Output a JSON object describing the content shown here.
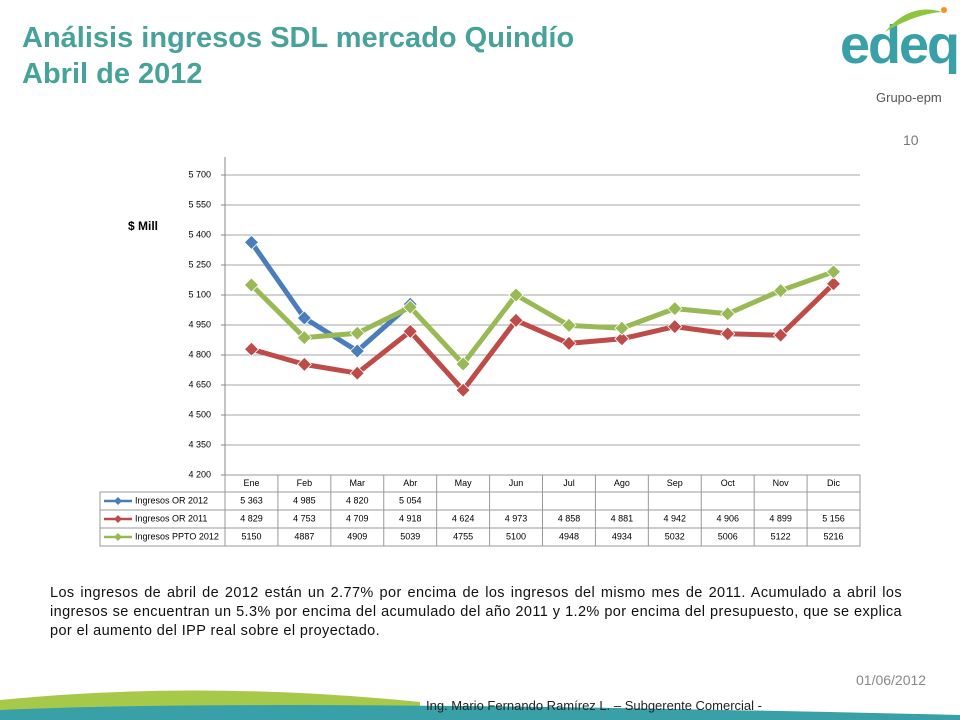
{
  "title": "Análisis ingresos SDL mercado Quindío",
  "subtitle": "Abril de 2012",
  "logo": {
    "brand": "edeq",
    "group": "Grupo-epm"
  },
  "page_number": "10",
  "paragraph": "Los ingresos de abril de 2012 están un 2.77% por encima de los ingresos del mismo mes de 2011. Acumulado a abril los ingresos se encuentran un 5.3% por encima del acumulado del año 2011 y 1.2% por encima del presupuesto, que se explica por el aumento del IPP real sobre el proyectado.",
  "date": "01/06/2012",
  "footer": "Ing. Mario Fernando Ramírez L. – Subgerente Comercial -",
  "chart_data": {
    "type": "line",
    "y_label": "$ Mill",
    "categories": [
      "Ene",
      "Feb",
      "Mar",
      "Abr",
      "May",
      "Jun",
      "Jul",
      "Ago",
      "Sep",
      "Oct",
      "Nov",
      "Dic"
    ],
    "ylim": [
      4200,
      5700
    ],
    "yticks": [
      {
        "value": 4200,
        "label": "4 200"
      },
      {
        "value": 4350,
        "label": "4 350"
      },
      {
        "value": 4500,
        "label": "4 500"
      },
      {
        "value": 4650,
        "label": "4 650"
      },
      {
        "value": 4800,
        "label": "4 800"
      },
      {
        "value": 4950,
        "label": "4 950"
      },
      {
        "value": 5100,
        "label": "5 100"
      },
      {
        "value": 5250,
        "label": "5 250"
      },
      {
        "value": 5400,
        "label": "5 400"
      },
      {
        "value": 5550,
        "label": "5 550"
      },
      {
        "value": 5700,
        "label": "5 700"
      }
    ],
    "grid": true,
    "series": [
      {
        "name": "Ingresos OR 2012",
        "color": "#4a7ebb",
        "values": [
          5363,
          4985,
          4820,
          5054,
          null,
          null,
          null,
          null,
          null,
          null,
          null,
          null
        ],
        "value_labels": [
          "5 363",
          "4 985",
          "4 820",
          "5 054",
          null,
          null,
          null,
          null,
          null,
          null,
          null,
          null
        ]
      },
      {
        "name": "Ingresos OR 2011",
        "color": "#be4b48",
        "values": [
          4829,
          4753,
          4709,
          4918,
          4624,
          4973,
          4858,
          4881,
          4942,
          4906,
          4899,
          5156
        ],
        "value_labels": [
          "4 829",
          "4 753",
          "4 709",
          "4 918",
          "4 624",
          "4 973",
          "4 858",
          "4 881",
          "4 942",
          "4 906",
          "4 899",
          "5 156"
        ]
      },
      {
        "name": "Ingresos PPTO 2012",
        "color": "#98b954",
        "values": [
          5150,
          4887,
          4909,
          5039,
          4755,
          5100,
          4948,
          4934,
          5032,
          5006,
          5122,
          5216
        ]
      }
    ]
  }
}
